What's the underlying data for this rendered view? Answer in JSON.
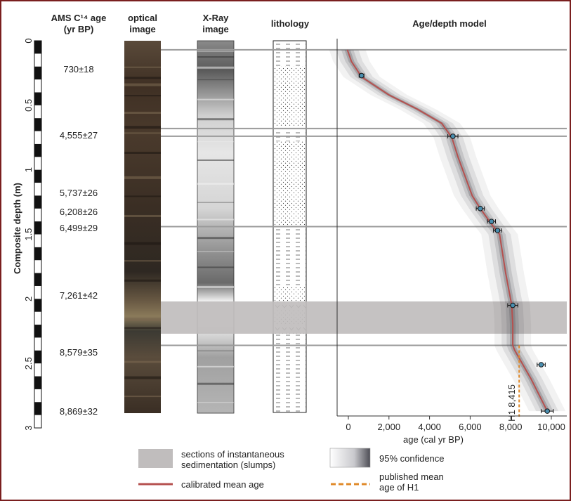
{
  "headers": {
    "ams_line1": "AMS C¹⁴ age",
    "ams_line2": "(yr BP)",
    "optical_line1": "optical",
    "optical_line2": "image",
    "xray_line1": "X-Ray",
    "xray_line2": "image",
    "lithology": "lithology",
    "model": "Age/depth model"
  },
  "depth_axis": {
    "label": "Composite depth (m)",
    "ticks": [
      "0",
      "0.5",
      "1",
      "1.5",
      "2",
      "2.5",
      "3"
    ]
  },
  "ams_ages": [
    "730±18",
    "4,555±27",
    "5,737±26",
    "6,208±26",
    "6,499±29",
    "7,261±42",
    "8,579±35",
    "8,869±32"
  ],
  "chart_data": {
    "type": "line",
    "title": "Age/depth model",
    "xlabel": "age (cal yr BP)",
    "ylabel": "Composite depth (m)",
    "xlim": [
      -500,
      10800
    ],
    "ylim": [
      3,
      0
    ],
    "x_tick_labels": [
      "0",
      "2,000",
      "4,000",
      "6,000",
      "8,000",
      "10,000"
    ],
    "x_ticks": [
      0,
      2000,
      4000,
      6000,
      8000,
      10000
    ],
    "series": [
      {
        "name": "calibrated mean age",
        "x": [
          -50,
          150,
          650,
          2000,
          3400,
          4600,
          5100,
          5400,
          6100,
          6500,
          7050,
          7450,
          7750,
          8050,
          8100,
          8100,
          8200,
          9000,
          9800
        ],
        "y": [
          0.07,
          0.16,
          0.28,
          0.42,
          0.53,
          0.64,
          0.75,
          0.9,
          1.2,
          1.3,
          1.42,
          1.5,
          1.8,
          2.05,
          2.2,
          2.36,
          2.4,
          2.62,
          2.87
        ],
        "color": "#b5514f"
      }
    ],
    "dated_points": {
      "x": [
        650,
        5150,
        6500,
        7050,
        7350,
        8100,
        9500,
        9800
      ],
      "y": [
        0.27,
        0.74,
        1.3,
        1.4,
        1.47,
        2.05,
        2.51,
        2.87
      ],
      "err": [
        120,
        250,
        200,
        200,
        200,
        250,
        200,
        300
      ]
    },
    "annotation": {
      "label": "H1 8,415",
      "x": 8415,
      "y_from": 2.36,
      "y_to": 3.0,
      "color": "#e08a2a"
    },
    "slump_sections": [
      [
        2.02,
        2.27
      ]
    ],
    "boundary_depths": [
      0.07,
      0.68,
      0.74,
      1.44,
      2.36
    ],
    "grid": false
  },
  "legend": {
    "slumps_line1": "sections of instantaneous",
    "slumps_line2": "sedimentation (slumps)",
    "confidence": "95% confidence",
    "calibrated": "calibrated mean age",
    "published_line1": "published mean",
    "published_line2": "age of H1"
  },
  "colors": {
    "slump": "#c0bdbd",
    "mean": "#b5514f",
    "h1": "#e08a2a",
    "frame": "#7a1f1f",
    "point_fill": "#4a8fb0"
  }
}
